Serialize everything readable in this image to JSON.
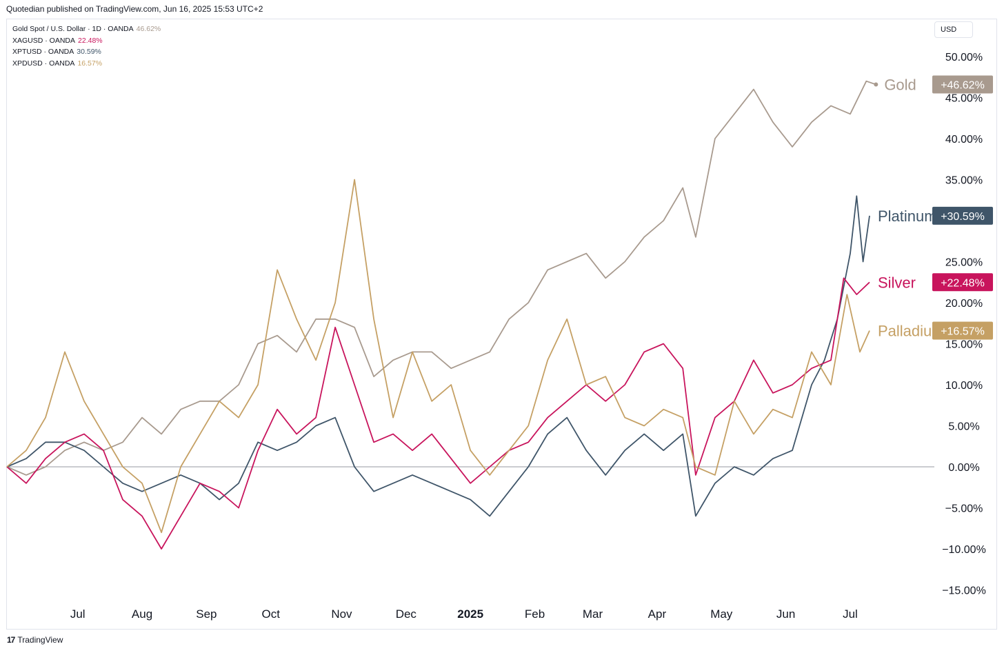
{
  "header": {
    "text": "Quotedian published on TradingView.com, Jun 16, 2025 15:53 UTC+2"
  },
  "currency_button": "USD",
  "legend": [
    {
      "label": "Gold Spot / U.S. Dollar · 1D · OANDA",
      "value": "46.62%",
      "color": "#a89a8e"
    },
    {
      "label": "XAGUSD · OANDA",
      "value": "22.48%",
      "color": "#c8145c"
    },
    {
      "label": "XPTUSD · OANDA",
      "value": "30.59%",
      "color": "#3f5569"
    },
    {
      "label": "XPDUSD · OANDA",
      "value": "16.57%",
      "color": "#c5a064"
    }
  ],
  "footer": {
    "brand": "TradingView",
    "mark": "17"
  },
  "chart_data": {
    "type": "line",
    "title": "",
    "xlabel": "",
    "ylabel": "",
    "y_unit": "%",
    "ylim": [
      -17,
      51
    ],
    "grid": false,
    "zero_line": true,
    "x_ticks": [
      {
        "label": "Jul",
        "t": 0.5
      },
      {
        "label": "Aug",
        "t": 1.5
      },
      {
        "label": "Sep",
        "t": 2.5
      },
      {
        "label": "Oct",
        "t": 3.5
      },
      {
        "label": "Nov",
        "t": 4.6
      },
      {
        "label": "Dec",
        "t": 5.6
      },
      {
        "label": "2025",
        "t": 6.6,
        "bold": true
      },
      {
        "label": "Feb",
        "t": 7.6
      },
      {
        "label": "Mar",
        "t": 8.5
      },
      {
        "label": "Apr",
        "t": 9.5
      },
      {
        "label": "May",
        "t": 10.5
      },
      {
        "label": "Jun",
        "t": 11.5
      },
      {
        "label": "Jul",
        "t": 12.5
      }
    ],
    "x_range": [
      -0.6,
      13.7
    ],
    "y_ticks": [
      50,
      45,
      40,
      35,
      25,
      20,
      15,
      10,
      5,
      0,
      -5,
      -10,
      -15
    ],
    "y_tick_labels": [
      "50.00%",
      "45.00%",
      "40.00%",
      "35.00%",
      "25.00%",
      "20.00%",
      "15.00%",
      "10.00%",
      "5.00%",
      "0.00%",
      "−5.00%",
      "−10.00%",
      "−15.00%"
    ],
    "series": [
      {
        "name": "Gold",
        "last_label": "+46.62%",
        "color": "#a89a8e",
        "points": [
          [
            -0.6,
            0
          ],
          [
            -0.3,
            -1
          ],
          [
            0,
            0
          ],
          [
            0.3,
            2
          ],
          [
            0.6,
            3
          ],
          [
            0.9,
            2
          ],
          [
            1.2,
            3
          ],
          [
            1.5,
            6
          ],
          [
            1.8,
            4
          ],
          [
            2.1,
            7
          ],
          [
            2.4,
            8
          ],
          [
            2.7,
            8
          ],
          [
            3.0,
            10
          ],
          [
            3.3,
            15
          ],
          [
            3.6,
            16
          ],
          [
            3.9,
            14
          ],
          [
            4.2,
            18
          ],
          [
            4.5,
            18
          ],
          [
            4.8,
            17
          ],
          [
            5.1,
            11
          ],
          [
            5.4,
            13
          ],
          [
            5.7,
            14
          ],
          [
            6.0,
            14
          ],
          [
            6.3,
            12
          ],
          [
            6.6,
            13
          ],
          [
            6.9,
            14
          ],
          [
            7.2,
            18
          ],
          [
            7.5,
            20
          ],
          [
            7.8,
            24
          ],
          [
            8.1,
            25
          ],
          [
            8.4,
            26
          ],
          [
            8.7,
            23
          ],
          [
            9.0,
            25
          ],
          [
            9.3,
            28
          ],
          [
            9.6,
            30
          ],
          [
            9.9,
            34
          ],
          [
            10.1,
            28
          ],
          [
            10.4,
            40
          ],
          [
            10.7,
            43
          ],
          [
            11.0,
            46
          ],
          [
            11.3,
            42
          ],
          [
            11.6,
            39
          ],
          [
            11.9,
            42
          ],
          [
            12.2,
            44
          ],
          [
            12.5,
            43
          ],
          [
            12.75,
            47
          ],
          [
            12.9,
            46.6
          ]
        ]
      },
      {
        "name": "Platinum",
        "last_label": "+30.59%",
        "color": "#3f5569",
        "points": [
          [
            -0.6,
            0
          ],
          [
            -0.3,
            1
          ],
          [
            0,
            3
          ],
          [
            0.3,
            3
          ],
          [
            0.6,
            2
          ],
          [
            0.9,
            0
          ],
          [
            1.2,
            -2
          ],
          [
            1.5,
            -3
          ],
          [
            1.8,
            -2
          ],
          [
            2.1,
            -1
          ],
          [
            2.4,
            -2
          ],
          [
            2.7,
            -4
          ],
          [
            3.0,
            -2
          ],
          [
            3.3,
            3
          ],
          [
            3.6,
            2
          ],
          [
            3.9,
            3
          ],
          [
            4.2,
            5
          ],
          [
            4.5,
            6
          ],
          [
            4.8,
            0
          ],
          [
            5.1,
            -3
          ],
          [
            5.4,
            -2
          ],
          [
            5.7,
            -1
          ],
          [
            6.0,
            -2
          ],
          [
            6.3,
            -3
          ],
          [
            6.6,
            -4
          ],
          [
            6.9,
            -6
          ],
          [
            7.2,
            -3
          ],
          [
            7.5,
            0
          ],
          [
            7.8,
            4
          ],
          [
            8.1,
            6
          ],
          [
            8.4,
            2
          ],
          [
            8.7,
            -1
          ],
          [
            9.0,
            2
          ],
          [
            9.3,
            4
          ],
          [
            9.6,
            2
          ],
          [
            9.9,
            4
          ],
          [
            10.1,
            -6
          ],
          [
            10.4,
            -2
          ],
          [
            10.7,
            0
          ],
          [
            11.0,
            -1
          ],
          [
            11.3,
            1
          ],
          [
            11.6,
            2
          ],
          [
            11.9,
            10
          ],
          [
            12.1,
            13
          ],
          [
            12.3,
            18
          ],
          [
            12.5,
            26
          ],
          [
            12.6,
            33
          ],
          [
            12.7,
            25
          ],
          [
            12.8,
            30.6
          ]
        ]
      },
      {
        "name": "Silver",
        "last_label": "+22.48%",
        "color": "#c8145c",
        "points": [
          [
            -0.6,
            0
          ],
          [
            -0.3,
            -2
          ],
          [
            0,
            1
          ],
          [
            0.3,
            3
          ],
          [
            0.6,
            4
          ],
          [
            0.9,
            2
          ],
          [
            1.2,
            -4
          ],
          [
            1.5,
            -6
          ],
          [
            1.8,
            -10
          ],
          [
            2.1,
            -6
          ],
          [
            2.4,
            -2
          ],
          [
            2.7,
            -3
          ],
          [
            3.0,
            -5
          ],
          [
            3.3,
            2
          ],
          [
            3.6,
            7
          ],
          [
            3.9,
            4
          ],
          [
            4.2,
            6
          ],
          [
            4.5,
            17
          ],
          [
            4.8,
            10
          ],
          [
            5.1,
            3
          ],
          [
            5.4,
            4
          ],
          [
            5.7,
            2
          ],
          [
            6.0,
            4
          ],
          [
            6.3,
            1
          ],
          [
            6.6,
            -2
          ],
          [
            6.9,
            0
          ],
          [
            7.2,
            2
          ],
          [
            7.5,
            3
          ],
          [
            7.8,
            6
          ],
          [
            8.1,
            8
          ],
          [
            8.4,
            10
          ],
          [
            8.7,
            8
          ],
          [
            9.0,
            10
          ],
          [
            9.3,
            14
          ],
          [
            9.6,
            15
          ],
          [
            9.9,
            12
          ],
          [
            10.1,
            -1
          ],
          [
            10.4,
            6
          ],
          [
            10.7,
            8
          ],
          [
            11.0,
            13
          ],
          [
            11.3,
            9
          ],
          [
            11.6,
            10
          ],
          [
            11.9,
            12
          ],
          [
            12.2,
            13
          ],
          [
            12.4,
            23
          ],
          [
            12.6,
            21
          ],
          [
            12.8,
            22.5
          ]
        ]
      },
      {
        "name": "Palladium",
        "last_label": "+16.57%",
        "color": "#c5a064",
        "points": [
          [
            -0.6,
            0
          ],
          [
            -0.3,
            2
          ],
          [
            0,
            6
          ],
          [
            0.3,
            14
          ],
          [
            0.6,
            8
          ],
          [
            0.9,
            4
          ],
          [
            1.2,
            0
          ],
          [
            1.5,
            -2
          ],
          [
            1.8,
            -8
          ],
          [
            2.1,
            0
          ],
          [
            2.4,
            4
          ],
          [
            2.7,
            8
          ],
          [
            3.0,
            6
          ],
          [
            3.3,
            10
          ],
          [
            3.6,
            24
          ],
          [
            3.9,
            18
          ],
          [
            4.2,
            13
          ],
          [
            4.5,
            20
          ],
          [
            4.8,
            35
          ],
          [
            5.1,
            18
          ],
          [
            5.4,
            6
          ],
          [
            5.7,
            14
          ],
          [
            6.0,
            8
          ],
          [
            6.3,
            10
          ],
          [
            6.6,
            2
          ],
          [
            6.9,
            -1
          ],
          [
            7.2,
            2
          ],
          [
            7.5,
            5
          ],
          [
            7.8,
            13
          ],
          [
            8.1,
            18
          ],
          [
            8.4,
            10
          ],
          [
            8.7,
            11
          ],
          [
            9.0,
            6
          ],
          [
            9.3,
            5
          ],
          [
            9.6,
            7
          ],
          [
            9.9,
            6
          ],
          [
            10.1,
            0
          ],
          [
            10.4,
            -1
          ],
          [
            10.7,
            8
          ],
          [
            11.0,
            4
          ],
          [
            11.3,
            7
          ],
          [
            11.6,
            6
          ],
          [
            11.9,
            14
          ],
          [
            12.2,
            10
          ],
          [
            12.45,
            21
          ],
          [
            12.65,
            14
          ],
          [
            12.8,
            16.6
          ]
        ]
      }
    ]
  }
}
